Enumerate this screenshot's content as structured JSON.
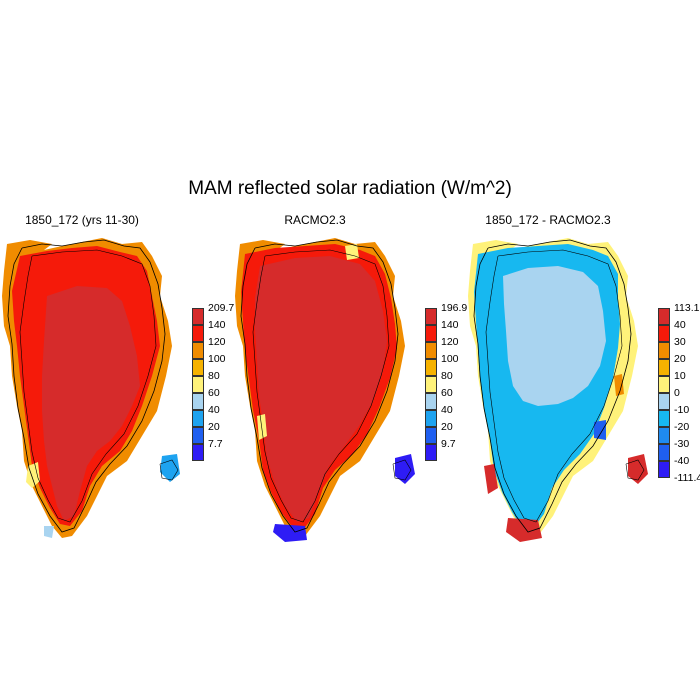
{
  "title": "MAM reflected solar radiation (W/m^2)",
  "panels": [
    {
      "title": "1850_172 (yrs 11-30)",
      "colorbar": {
        "labels": [
          "209.7",
          "140",
          "120",
          "100",
          "80",
          "60",
          "40",
          "20",
          "7.7"
        ],
        "colors": [
          "#d62b2b",
          "#f51a0a",
          "#f08c00",
          "#f6b200",
          "#fff27a",
          "#a9d4f0",
          "#1ea3f0",
          "#1f5ff0",
          "#2e1cf5"
        ]
      }
    },
    {
      "title": "RACMO2.3",
      "colorbar": {
        "labels": [
          "196.9",
          "140",
          "120",
          "100",
          "80",
          "60",
          "40",
          "20",
          "9.7"
        ],
        "colors": [
          "#d62b2b",
          "#f51a0a",
          "#f08c00",
          "#f6b200",
          "#fff27a",
          "#a9d4f0",
          "#1ea3f0",
          "#1f5ff0",
          "#2e1cf5"
        ]
      }
    },
    {
      "title": "1850_172 - RACMO2.3",
      "colorbar": {
        "labels": [
          "113.1",
          "40",
          "30",
          "20",
          "10",
          "0",
          "-10",
          "-20",
          "-30",
          "-40",
          "-111.4"
        ],
        "colors": [
          "#d62b2b",
          "#f51a0a",
          "#f08c00",
          "#f6b200",
          "#fff27a",
          "#a9d4f0",
          "#17b8f0",
          "#1f8bf0",
          "#1f5ff0",
          "#2e1cf5"
        ]
      }
    }
  ]
}
